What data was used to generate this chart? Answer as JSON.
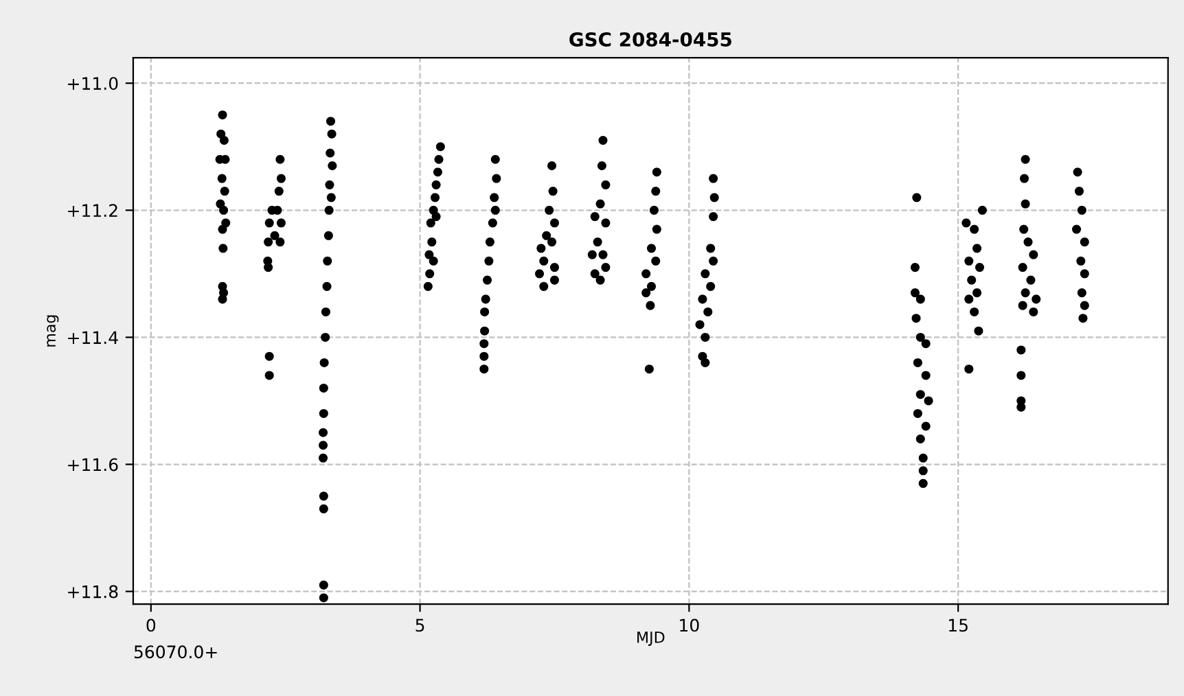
{
  "chart_data": {
    "type": "scatter",
    "title": "GSC 2084-0455",
    "xlabel": "MJD",
    "ylabel": "mag",
    "annotations": [
      "56070.0+"
    ],
    "xlim": [
      -0.33,
      18.9
    ],
    "xticks": [
      0,
      5,
      10,
      15
    ],
    "ylim": [
      11.82,
      10.96
    ],
    "yticks": [
      {
        "value": 11.0,
        "label": "+11.0"
      },
      {
        "value": 11.2,
        "label": "+11.2"
      },
      {
        "value": 11.4,
        "label": "+11.4"
      },
      {
        "value": 11.6,
        "label": "+11.6"
      },
      {
        "value": 11.8,
        "label": "+11.8"
      }
    ],
    "grid": true,
    "marker": "circle",
    "series": [
      {
        "color": "#000000",
        "x": [
          1.33,
          1.3,
          1.36,
          1.28,
          1.38,
          1.32,
          1.37,
          1.29,
          1.35,
          1.39,
          1.33,
          1.34,
          1.33,
          1.35,
          1.33,
          2.4,
          2.42,
          2.38,
          2.35,
          2.42,
          2.25,
          2.2,
          2.18,
          2.3,
          2.4,
          2.17,
          2.18,
          2.2,
          2.2,
          3.34,
          3.36,
          3.33,
          3.37,
          3.32,
          3.35,
          3.31,
          3.3,
          3.28,
          3.27,
          3.25,
          3.24,
          3.22,
          3.21,
          3.21,
          3.2,
          3.2,
          3.2,
          3.21,
          3.21,
          3.21,
          3.21,
          5.15,
          5.18,
          5.17,
          5.22,
          5.2,
          5.25,
          5.28,
          5.3,
          5.33,
          5.35,
          5.38,
          5.3,
          5.25,
          6.4,
          6.42,
          6.38,
          6.35,
          6.4,
          6.3,
          6.28,
          6.25,
          6.22,
          6.2,
          6.2,
          6.19,
          6.19,
          6.19,
          7.45,
          7.47,
          7.4,
          7.5,
          7.35,
          7.45,
          7.25,
          7.3,
          7.5,
          7.22,
          7.3,
          7.5,
          8.4,
          8.38,
          8.45,
          8.35,
          8.25,
          8.45,
          8.3,
          8.2,
          8.4,
          8.25,
          8.35,
          8.45,
          9.4,
          9.38,
          9.35,
          9.4,
          9.3,
          9.38,
          9.2,
          9.3,
          9.2,
          9.28,
          9.26,
          10.45,
          10.47,
          10.45,
          10.4,
          10.45,
          10.3,
          10.4,
          10.25,
          10.35,
          10.2,
          10.3,
          10.25,
          10.3,
          14.23,
          14.2,
          14.2,
          14.22,
          14.3,
          14.3,
          14.4,
          14.25,
          14.4,
          14.3,
          14.45,
          14.25,
          14.4,
          14.3,
          14.35,
          14.35,
          14.35,
          15.45,
          15.15,
          15.3,
          15.35,
          15.2,
          15.4,
          15.25,
          15.35,
          15.2,
          15.3,
          15.38,
          15.2,
          16.25,
          16.23,
          16.25,
          16.22,
          16.3,
          16.4,
          16.2,
          16.35,
          16.25,
          16.45,
          16.2,
          16.4,
          16.17,
          16.17,
          16.17,
          16.17,
          17.22,
          17.25,
          17.3,
          17.2,
          17.35,
          17.28,
          17.35,
          17.3,
          17.35,
          17.32
        ],
        "values": [
          11.05,
          11.08,
          11.09,
          11.12,
          11.12,
          11.15,
          11.17,
          11.19,
          11.2,
          11.22,
          11.23,
          11.26,
          11.32,
          11.33,
          11.34,
          11.12,
          11.15,
          11.17,
          11.2,
          11.22,
          11.2,
          11.22,
          11.25,
          11.24,
          11.25,
          11.28,
          11.29,
          11.43,
          11.46,
          11.06,
          11.08,
          11.11,
          11.13,
          11.16,
          11.18,
          11.2,
          11.24,
          11.28,
          11.32,
          11.36,
          11.4,
          11.44,
          11.48,
          11.52,
          11.55,
          11.57,
          11.59,
          11.65,
          11.67,
          11.79,
          11.81,
          11.32,
          11.3,
          11.27,
          11.25,
          11.22,
          11.2,
          11.18,
          11.16,
          11.14,
          11.12,
          11.1,
          11.21,
          11.28,
          11.12,
          11.15,
          11.18,
          11.22,
          11.2,
          11.25,
          11.28,
          11.31,
          11.34,
          11.36,
          11.39,
          11.41,
          11.43,
          11.45,
          11.13,
          11.17,
          11.2,
          11.22,
          11.24,
          11.25,
          11.26,
          11.28,
          11.29,
          11.3,
          11.32,
          11.31,
          11.09,
          11.13,
          11.16,
          11.19,
          11.21,
          11.22,
          11.25,
          11.27,
          11.27,
          11.3,
          11.31,
          11.29,
          11.14,
          11.17,
          11.2,
          11.23,
          11.26,
          11.28,
          11.3,
          11.32,
          11.33,
          11.35,
          11.45,
          11.15,
          11.18,
          11.21,
          11.26,
          11.28,
          11.3,
          11.32,
          11.34,
          11.36,
          11.38,
          11.4,
          11.43,
          11.44,
          11.18,
          11.29,
          11.33,
          11.37,
          11.34,
          11.4,
          11.41,
          11.44,
          11.46,
          11.49,
          11.5,
          11.52,
          11.54,
          11.56,
          11.59,
          11.61,
          11.63,
          11.2,
          11.22,
          11.23,
          11.26,
          11.28,
          11.29,
          11.31,
          11.33,
          11.34,
          11.36,
          11.39,
          11.45,
          11.12,
          11.15,
          11.19,
          11.23,
          11.25,
          11.27,
          11.29,
          11.31,
          11.33,
          11.34,
          11.35,
          11.36,
          11.42,
          11.46,
          11.5,
          11.51,
          11.14,
          11.17,
          11.2,
          11.23,
          11.25,
          11.28,
          11.3,
          11.33,
          11.35,
          11.37
        ]
      }
    ]
  }
}
